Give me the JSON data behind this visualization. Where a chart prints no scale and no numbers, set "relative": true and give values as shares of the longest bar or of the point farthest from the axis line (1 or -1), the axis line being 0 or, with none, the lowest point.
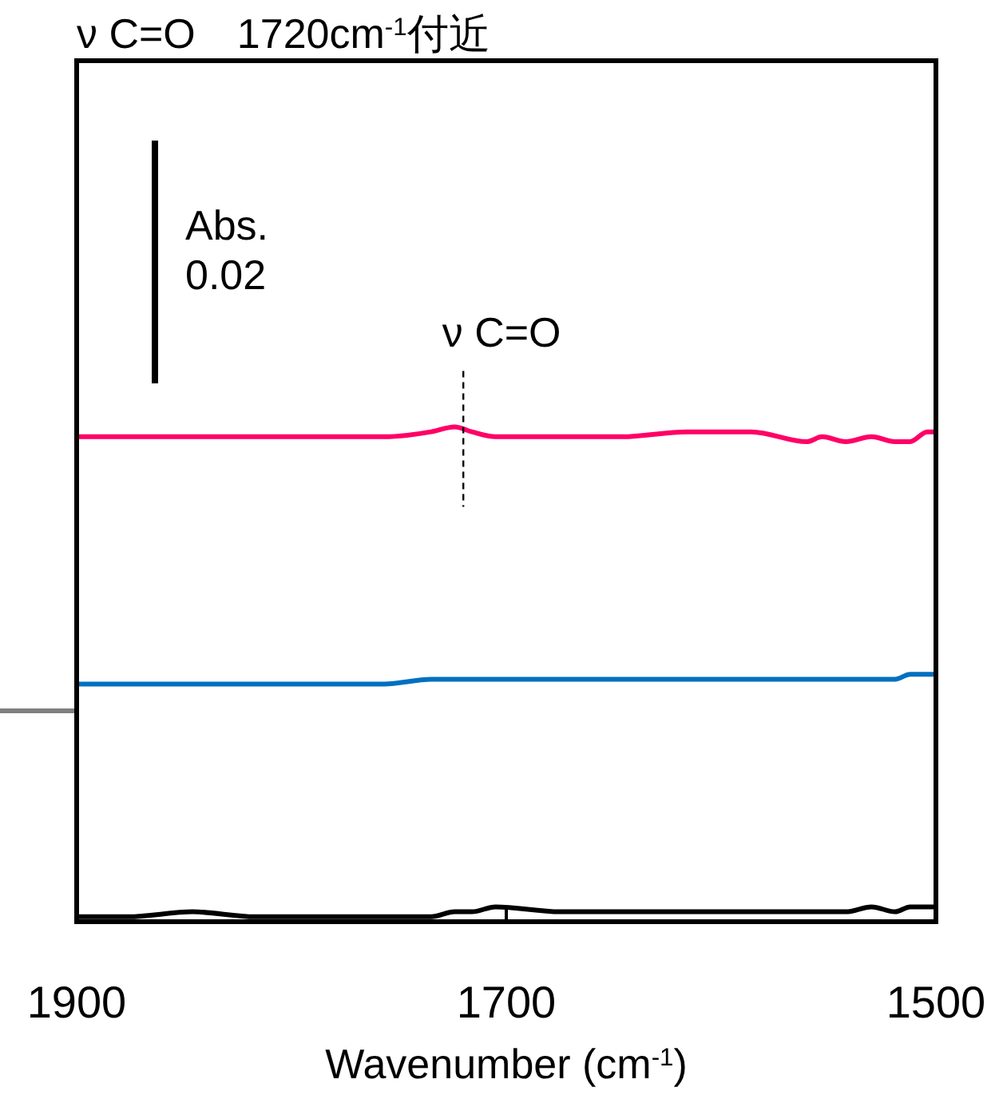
{
  "chart_data": {
    "type": "line",
    "title": "ν C=O　1720cm$^{-1}$付近",
    "xlabel": "Wavenumber (cm$^{-1}$)",
    "relative": true,
    "xlim": [
      1900,
      1500
    ],
    "xticks": [
      1900,
      1700,
      1500
    ],
    "x": [
      1900,
      1876,
      1846,
      1817,
      1787,
      1757,
      1735,
      1724,
      1716,
      1705,
      1675,
      1646,
      1616,
      1586,
      1560,
      1553,
      1542,
      1530,
      1519,
      1512,
      1504,
      1500
    ],
    "series": [
      {
        "color": "#ff0066",
        "values": [
          0.98,
          0.98,
          0.98,
          0.98,
          0.98,
          0.98,
          0.99,
          1.0,
          0.99,
          0.98,
          0.98,
          0.98,
          0.99,
          0.99,
          0.97,
          0.98,
          0.97,
          0.98,
          0.97,
          0.97,
          0.99,
          0.99
        ]
      },
      {
        "color": "#0070c0",
        "values": [
          0.48,
          0.48,
          0.48,
          0.48,
          0.48,
          0.48,
          0.49,
          0.49,
          0.49,
          0.49,
          0.49,
          0.49,
          0.49,
          0.49,
          0.49,
          0.49,
          0.49,
          0.49,
          0.49,
          0.5,
          0.5,
          0.5
        ]
      },
      {
        "color": "#000000",
        "values": [
          0.01,
          0.01,
          0.02,
          0.01,
          0.01,
          0.01,
          0.01,
          0.02,
          0.02,
          0.03,
          0.02,
          0.02,
          0.02,
          0.02,
          0.02,
          0.02,
          0.02,
          0.03,
          0.02,
          0.03,
          0.03,
          0.03
        ]
      }
    ],
    "annotations": [
      "Abs. 0.02",
      {
        "text": "ν C=O",
        "x": 1720,
        "y": 1.0
      }
    ]
  }
}
